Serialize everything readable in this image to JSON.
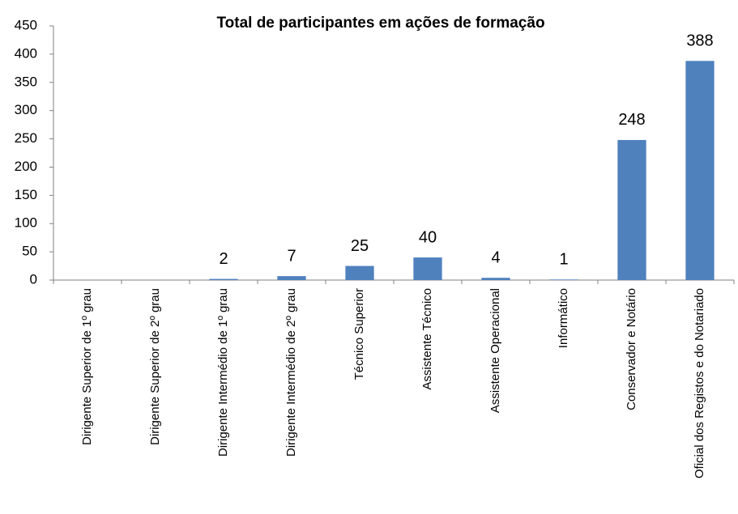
{
  "chart_data": {
    "type": "bar",
    "title": "Total de participantes em ações de formação",
    "categories": [
      "Dirigente Superior de 1º grau",
      "Dirigente Superior de 2º grau",
      "Dirigente Intermédio de 1º grau",
      "Dirigente Intermédio de 2º grau",
      "Técnico Superior",
      "Assistente Técnico",
      "Assistente Operacional",
      "Informático",
      "Conservador e Notário",
      "Oficial dos Registos e do Notariado"
    ],
    "values": [
      null,
      null,
      2,
      7,
      25,
      40,
      4,
      1,
      248,
      388
    ],
    "color": "#4f81bd",
    "ylim": [
      0,
      450
    ],
    "yticks": [
      0,
      50,
      100,
      150,
      200,
      250,
      300,
      350,
      400,
      450
    ],
    "grid": false
  }
}
